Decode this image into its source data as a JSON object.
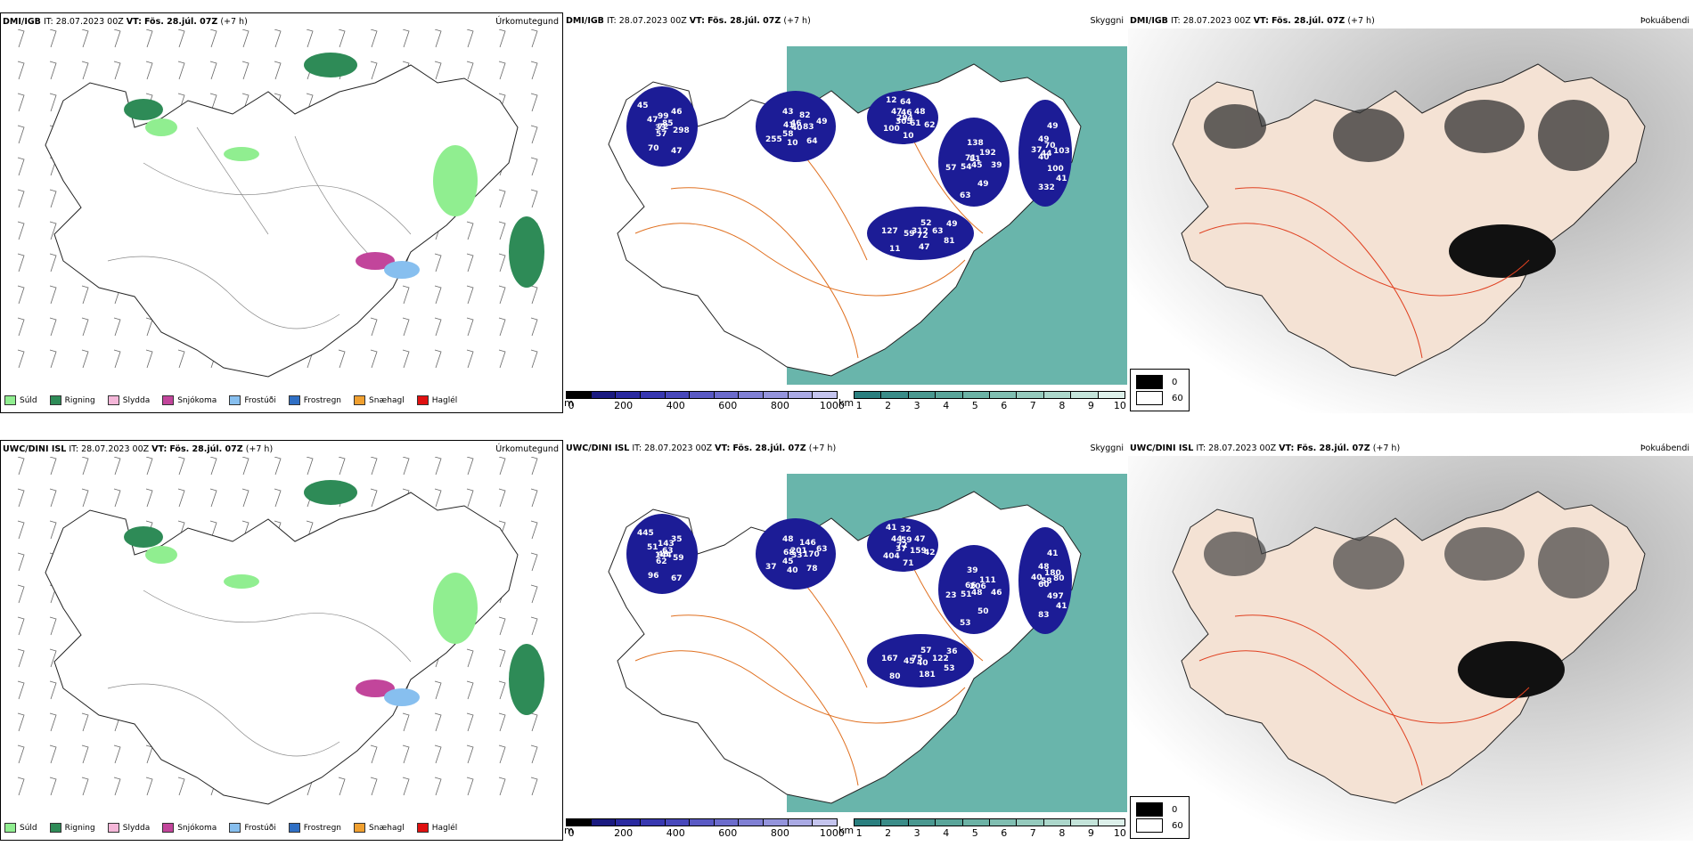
{
  "rows": [
    {
      "precip": {
        "model": "DMI/IGB",
        "it_label": "IT:",
        "it_value": "28.07.2023 00Z",
        "vt_label": "VT:",
        "vt_value": "Fös. 28.júl. 07Z",
        "lead": "(+7 h)",
        "corner": "Úrkomutegund"
      },
      "cloud": {
        "model": "DMI/IGB",
        "it_label": "IT:",
        "it_value": "28.07.2023 00Z",
        "vt_label": "VT:",
        "vt_value": "Fös. 28.júl. 07Z",
        "lead": "(+7 h)",
        "corner": "Skyggni",
        "labels": [
          "72",
          "58",
          "64",
          "45",
          "37",
          "49",
          "57",
          "43",
          "62",
          "54",
          "49",
          "72",
          "47",
          "49",
          "305",
          "138",
          "41",
          "59",
          "46",
          "40",
          "47",
          "39",
          "40",
          "52",
          "47",
          "41",
          "48",
          "63",
          "49",
          "81",
          "33",
          "82",
          "10",
          "71",
          "103",
          "11",
          "99",
          "64",
          "294",
          "192",
          "332",
          "312",
          "298",
          "255",
          "46",
          "49",
          "44",
          "63",
          "70",
          "46",
          "61",
          "57",
          "70",
          "47",
          "45",
          "83",
          "100",
          "81",
          "100",
          "127",
          "85",
          "10",
          "12"
        ]
      },
      "fog": {
        "model": "DMI/IGB",
        "it_label": "IT:",
        "it_value": "28.07.2023 00Z",
        "vt_label": "VT:",
        "vt_value": "Fös. 28.júl. 07Z",
        "lead": "(+7 h)",
        "corner": "Þokuábendi"
      }
    },
    {
      "precip": {
        "model": "UWC/DINI ISL",
        "it_label": "IT:",
        "it_value": "28.07.2023 00Z",
        "vt_label": "VT:",
        "vt_value": "Fös. 28.júl. 07Z",
        "lead": "(+7 h)",
        "corner": "Úrkomutegund"
      },
      "cloud": {
        "model": "UWC/DINI ISL",
        "it_label": "IT:",
        "it_value": "28.07.2023 00Z",
        "vt_label": "VT:",
        "vt_value": "Fös. 28.júl. 07Z",
        "lead": "(+7 h)",
        "corner": "Skyggni",
        "labels": [
          "48",
          "45",
          "32",
          "48",
          "40",
          "36",
          "62",
          "48",
          "42",
          "51",
          "41",
          "40",
          "51",
          "63",
          "37",
          "39",
          "41",
          "45",
          "35",
          "33",
          "44",
          "46",
          "60",
          "57",
          "67",
          "68",
          "47",
          "53",
          "48",
          "53",
          "144",
          "146",
          "71",
          "66",
          "80",
          "80",
          "143",
          "78",
          "72",
          "111",
          "83",
          "75",
          "59",
          "37",
          "59",
          "50",
          "58",
          "122",
          "96",
          "201",
          "159",
          "23",
          "180",
          "181",
          "445",
          "170",
          "404",
          "206",
          "497",
          "167",
          "63",
          "40",
          "41"
        ]
      },
      "fog": {
        "model": "UWC/DINI ISL",
        "it_label": "IT:",
        "it_value": "28.07.2023 00Z",
        "vt_label": "VT:",
        "vt_value": "Fös. 28.júl. 07Z",
        "lead": "(+7 h)",
        "corner": "Þokuábendi"
      }
    }
  ],
  "precip_legend": [
    {
      "label": "Súld",
      "color": "#90ee90"
    },
    {
      "label": "Rigning",
      "color": "#2e8b57"
    },
    {
      "label": "Slydda",
      "color": "#f4b6d8"
    },
    {
      "label": "Snjókoma",
      "color": "#c2459b"
    },
    {
      "label": "Frostúði",
      "color": "#87bfef"
    },
    {
      "label": "Frostregn",
      "color": "#2f6fc4"
    },
    {
      "label": "Snæhagl",
      "color": "#f0a030"
    },
    {
      "label": "Haglél",
      "color": "#e01010"
    }
  ],
  "cloud_scale": {
    "unit": "m",
    "ticks": [
      "0",
      "200",
      "400",
      "600",
      "800",
      "1000"
    ],
    "colors": [
      "#000000",
      "#1a1a80",
      "#2a2aa0",
      "#3838b0",
      "#4848bb",
      "#5a5ac4",
      "#6c6ccc",
      "#8080d4",
      "#9494dc",
      "#aaaae4",
      "#c4c4ee"
    ]
  },
  "vis_scale": {
    "unit": "km",
    "ticks": [
      "1",
      "2",
      "3",
      "4",
      "5",
      "6",
      "7",
      "8",
      "9",
      "10"
    ],
    "colors": [
      "#2a7f7f",
      "#3a8c88",
      "#4a9890",
      "#5aa59a",
      "#6cb2a5",
      "#80beb1",
      "#95cabd",
      "#acd7cb",
      "#c4e4da",
      "#ddf0ea"
    ]
  },
  "fog_legend": [
    {
      "label": "0",
      "color": "#000000"
    },
    {
      "label": "60",
      "color": "#ffffff"
    }
  ],
  "colors": {
    "land": "#f4e2d4",
    "road": "#e07020",
    "sea_vis": "#4fa89c",
    "cloud": "#1c1c96"
  }
}
